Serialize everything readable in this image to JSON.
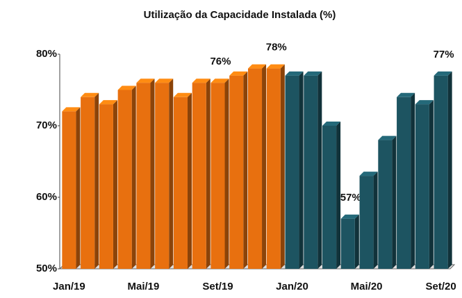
{
  "chart_data": {
    "type": "bar",
    "title": "Utilização da Capacidade Instalada (%)",
    "categories": [
      "Jan/19",
      null,
      null,
      null,
      "Mai/19",
      null,
      null,
      null,
      "Set/19",
      null,
      null,
      null,
      "Jan/20",
      null,
      null,
      null,
      "Mai/20",
      null,
      null,
      null,
      "Set/20"
    ],
    "values": [
      72,
      74,
      73,
      75,
      76,
      76,
      74,
      76,
      76,
      77,
      78,
      78,
      77,
      77,
      70,
      57,
      63,
      68,
      74,
      73,
      77
    ],
    "value_labels": [
      null,
      null,
      null,
      null,
      null,
      null,
      null,
      null,
      "76%",
      null,
      null,
      "78%",
      null,
      null,
      null,
      "57%",
      null,
      null,
      null,
      null,
      "77%"
    ],
    "colors": [
      "#e8700f",
      "#e8700f",
      "#e8700f",
      "#e8700f",
      "#e8700f",
      "#e8700f",
      "#e8700f",
      "#e8700f",
      "#e8700f",
      "#e8700f",
      "#e8700f",
      "#e8700f",
      "#1d5461",
      "#1d5461",
      "#1d5461",
      "#1d5461",
      "#1d5461",
      "#1d5461",
      "#1d5461",
      "#1d5461",
      "#1d5461"
    ],
    "ylim": [
      50,
      80
    ],
    "yticks": [
      {
        "value": 50,
        "label": "50%"
      },
      {
        "value": 60,
        "label": "60%"
      },
      {
        "value": 70,
        "label": "70%"
      },
      {
        "value": 80,
        "label": "80%"
      }
    ],
    "grid": false
  }
}
